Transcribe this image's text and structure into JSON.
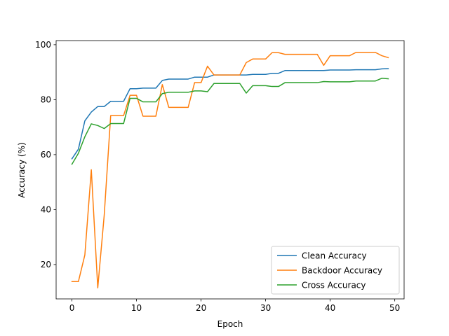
{
  "chart_data": {
    "type": "line",
    "title": "",
    "xlabel": "Epoch",
    "ylabel": "Accuracy (%)",
    "xlim": [
      -2.45,
      51.45
    ],
    "ylim": [
      7.5,
      101.5
    ],
    "xticks": [
      "0",
      "10",
      "20",
      "30",
      "40",
      "50"
    ],
    "yticks": [
      "20",
      "40",
      "60",
      "80",
      "100"
    ],
    "grid": false,
    "legend_position": "lower-right",
    "x": [
      0,
      1,
      2,
      3,
      4,
      5,
      6,
      7,
      8,
      9,
      10,
      11,
      12,
      13,
      14,
      15,
      16,
      17,
      18,
      19,
      20,
      21,
      22,
      23,
      24,
      25,
      26,
      27,
      28,
      29,
      30,
      31,
      32,
      33,
      34,
      35,
      36,
      37,
      38,
      39,
      40,
      41,
      42,
      43,
      44,
      45,
      46,
      47,
      48,
      49
    ],
    "series": [
      {
        "name": "Clean Accuracy",
        "color": "#1f77b4",
        "values": [
          58.5,
          62,
          72.3,
          75.5,
          77.5,
          77.5,
          79.4,
          79.4,
          79.4,
          84,
          84,
          84.2,
          84.2,
          84.2,
          87,
          87.5,
          87.5,
          87.5,
          87.5,
          88.2,
          88.2,
          88.2,
          89,
          89,
          89,
          89,
          89,
          89,
          89.2,
          89.2,
          89.2,
          89.6,
          89.6,
          90.6,
          90.6,
          90.6,
          90.6,
          90.6,
          90.6,
          90.6,
          90.8,
          90.8,
          90.8,
          90.8,
          90.9,
          90.9,
          90.9,
          90.9,
          91.2,
          91.3
        ]
      },
      {
        "name": "Backdoor Accuracy",
        "color": "#ff7f0e",
        "values": [
          13.8,
          13.8,
          23.5,
          54.5,
          11.5,
          38,
          74.2,
          74.2,
          74.2,
          81.6,
          81.6,
          74,
          74,
          74,
          85.5,
          77.2,
          77.2,
          77.2,
          77.2,
          86.2,
          86.2,
          92.2,
          89,
          89,
          89,
          89,
          89,
          93.5,
          94.8,
          94.8,
          94.8,
          97.1,
          97.1,
          96.5,
          96.5,
          96.5,
          96.5,
          96.5,
          96.5,
          92.5,
          96,
          96,
          96,
          96,
          97.2,
          97.2,
          97.2,
          97.2,
          96,
          95.3
        ]
      },
      {
        "name": "Cross Accuracy",
        "color": "#2ca02c",
        "values": [
          56.5,
          60.5,
          66.5,
          71.2,
          70.6,
          69.5,
          71.3,
          71.3,
          71.3,
          80.5,
          80.5,
          79.2,
          79.2,
          79.2,
          82.2,
          82.7,
          82.7,
          82.7,
          82.7,
          83.2,
          83.2,
          82.9,
          85.9,
          85.9,
          85.9,
          85.9,
          85.9,
          82.4,
          85.1,
          85.1,
          85.1,
          84.8,
          84.8,
          86.2,
          86.2,
          86.2,
          86.2,
          86.2,
          86.2,
          86.6,
          86.5,
          86.5,
          86.5,
          86.5,
          86.8,
          86.8,
          86.8,
          86.8,
          87.8,
          87.6
        ]
      }
    ]
  }
}
